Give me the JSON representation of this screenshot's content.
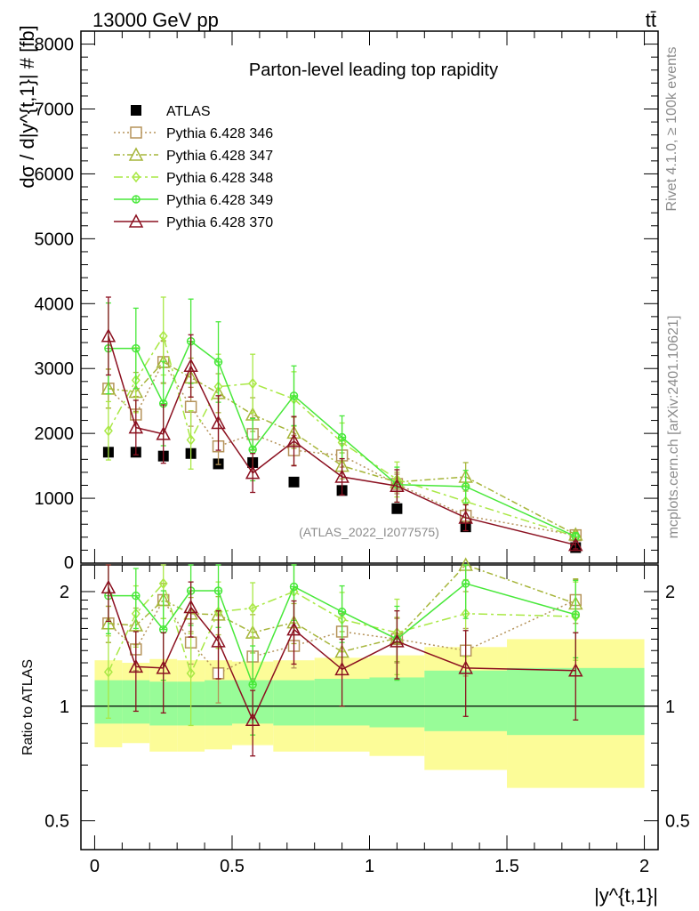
{
  "header": {
    "energy": "13000 GeV pp",
    "process": "tt̄"
  },
  "side_labels": {
    "rivet": "Rivet 4.1.0, ≥ 100k events",
    "source": "mcplots.cern.ch [arXiv:2401.10621]"
  },
  "watermark": "(ATLAS_2022_I2077575)",
  "colors": {
    "atlas": "#000000",
    "p346": "#b5935a",
    "p347": "#a6b53a",
    "p348": "#a9e845",
    "p349": "#48e83a",
    "p370": "#8b1020",
    "band_stat": "#98fc98",
    "band_total": "#fcfc98"
  },
  "chart_data": [
    {
      "type": "scatter",
      "title": "Parton-level leading top rapidity",
      "xlabel": "|y^{t,1}|",
      "ylabel": "dσ / d|y^{t,1}| # [fb]",
      "xlim": [
        -0.05,
        2.05
      ],
      "ylim": [
        0,
        8200
      ],
      "yticks": [
        1000,
        2000,
        3000,
        4000,
        5000,
        6000,
        7000,
        8000
      ],
      "ytick_labels": [
        "1000",
        "2000",
        "3000",
        "4000",
        "5000",
        "6000",
        "7000",
        "8000"
      ],
      "zero_label": "0",
      "x": [
        0.05,
        0.15,
        0.25,
        0.35,
        0.45,
        0.575,
        0.725,
        0.9,
        1.1,
        1.35,
        1.75
      ],
      "x_edges": [
        0,
        0.1,
        0.2,
        0.3,
        0.4,
        0.5,
        0.65,
        0.8,
        1.0,
        1.2,
        1.5,
        2.0
      ],
      "series": [
        {
          "name": "ATLAS",
          "key": "atlas",
          "marker": "square-filled",
          "values": [
            1710,
            1710,
            1650,
            1690,
            1530,
            1550,
            1250,
            1120,
            840,
            560,
            240
          ]
        },
        {
          "name": "Pythia 6.428 346",
          "key": "p346",
          "marker": "square",
          "dash": "2,3",
          "values": [
            2690,
            2290,
            3100,
            2410,
            1800,
            1990,
            1740,
            1660,
            1220,
            730,
            430
          ],
          "errors": [
            300,
            280,
            320,
            300,
            280,
            250,
            230,
            180,
            150,
            100,
            40
          ]
        },
        {
          "name": "Pythia 6.428 347",
          "key": "p347",
          "marker": "triangle",
          "dash": "7,3,2,3",
          "values": [
            2690,
            2640,
            3100,
            2860,
            2620,
            2290,
            2010,
            1500,
            1250,
            1330,
            440
          ],
          "errors": [
            300,
            300,
            330,
            300,
            300,
            260,
            240,
            200,
            150,
            220,
            50
          ]
        },
        {
          "name": "Pythia 6.428 348",
          "key": "p348",
          "marker": "diamond",
          "dash": "10,4,3,4",
          "values": [
            2040,
            2820,
            3500,
            1900,
            2720,
            2770,
            2530,
            1860,
            1290,
            950,
            410
          ],
          "errors": [
            450,
            500,
            600,
            450,
            500,
            450,
            420,
            300,
            270,
            250,
            60
          ]
        },
        {
          "name": "Pythia 6.428 349",
          "key": "p349",
          "marker": "cross",
          "dash": "",
          "values": [
            3310,
            3310,
            2460,
            3420,
            3100,
            1750,
            2580,
            1940,
            1210,
            1180,
            410
          ],
          "errors": [
            700,
            620,
            650,
            650,
            620,
            480,
            460,
            330,
            270,
            250,
            60
          ]
        },
        {
          "name": "Pythia 6.428 370",
          "key": "p370",
          "marker": "triangle",
          "dash": "",
          "values": [
            3500,
            2090,
            1990,
            3040,
            2160,
            1390,
            1880,
            1330,
            1190,
            700,
            280
          ],
          "errors": [
            600,
            420,
            450,
            480,
            420,
            300,
            380,
            280,
            250,
            200,
            60
          ]
        }
      ]
    },
    {
      "type": "scatter",
      "ylabel": "Ratio to ATLAS",
      "xlim": [
        -0.05,
        2.05
      ],
      "ylim": [
        0.42,
        2.35
      ],
      "log_y": true,
      "yticks": [
        0.5,
        1,
        2
      ],
      "ytick_labels": [
        "0.5",
        "1",
        "2"
      ],
      "xticks": [
        0,
        0.5,
        1,
        1.5,
        2
      ],
      "xtick_labels": [
        "0",
        "0.5",
        "1",
        "1.5",
        "2"
      ],
      "bands": {
        "stat_low": [
          0.9,
          0.9,
          0.89,
          0.89,
          0.89,
          0.9,
          0.89,
          0.89,
          0.88,
          0.86,
          0.84
        ],
        "stat_high": [
          1.17,
          1.17,
          1.16,
          1.16,
          1.17,
          1.17,
          1.17,
          1.18,
          1.19,
          1.24,
          1.26
        ],
        "total_low": [
          0.78,
          0.8,
          0.76,
          0.76,
          0.77,
          0.79,
          0.76,
          0.76,
          0.74,
          0.68,
          0.61
        ],
        "total_high": [
          1.32,
          1.3,
          1.33,
          1.32,
          1.32,
          1.31,
          1.32,
          1.34,
          1.36,
          1.43,
          1.5
        ]
      },
      "series": [
        {
          "name": "Pythia 6.428 346",
          "key": "p346",
          "values": [
            1.65,
            1.41,
            1.9,
            1.47,
            1.22,
            1.35,
            1.44,
            1.57,
            1.5,
            1.4,
            1.9
          ],
          "errors": [
            0.18,
            0.17,
            0.2,
            0.18,
            0.2,
            0.17,
            0.18,
            0.18,
            0.2,
            0.2,
            0.25
          ]
        },
        {
          "name": "Pythia 6.428 347",
          "key": "p347",
          "values": [
            1.65,
            1.63,
            1.9,
            1.75,
            1.74,
            1.56,
            1.66,
            1.39,
            1.51,
            2.35,
            1.86
          ],
          "errors": [
            0.18,
            0.18,
            0.2,
            0.18,
            0.2,
            0.18,
            0.2,
            0.18,
            0.2,
            0.35,
            0.3
          ]
        },
        {
          "name": "Pythia 6.428 348",
          "key": "p348",
          "values": [
            1.23,
            1.75,
            2.1,
            1.22,
            1.77,
            1.81,
            2.0,
            1.69,
            1.56,
            1.75,
            1.72
          ],
          "errors": [
            0.3,
            0.32,
            0.4,
            0.33,
            0.35,
            0.3,
            0.35,
            0.3,
            0.35,
            0.4,
            0.4
          ]
        },
        {
          "name": "Pythia 6.428 349",
          "key": "p349",
          "values": [
            1.95,
            1.95,
            1.59,
            2.01,
            2.01,
            1.14,
            2.06,
            1.77,
            1.5,
            2.1,
            1.74
          ],
          "errors": [
            0.4,
            0.35,
            0.42,
            0.38,
            0.4,
            0.3,
            0.38,
            0.3,
            0.33,
            0.4,
            0.4
          ]
        },
        {
          "name": "Pythia 6.428 370",
          "key": "p370",
          "values": [
            2.05,
            1.27,
            1.26,
            1.82,
            1.48,
            0.92,
            1.59,
            1.25,
            1.48,
            1.26,
            1.24
          ],
          "errors": [
            0.38,
            0.3,
            0.3,
            0.3,
            0.3,
            0.18,
            0.3,
            0.25,
            0.3,
            0.32,
            0.32
          ]
        }
      ]
    }
  ]
}
